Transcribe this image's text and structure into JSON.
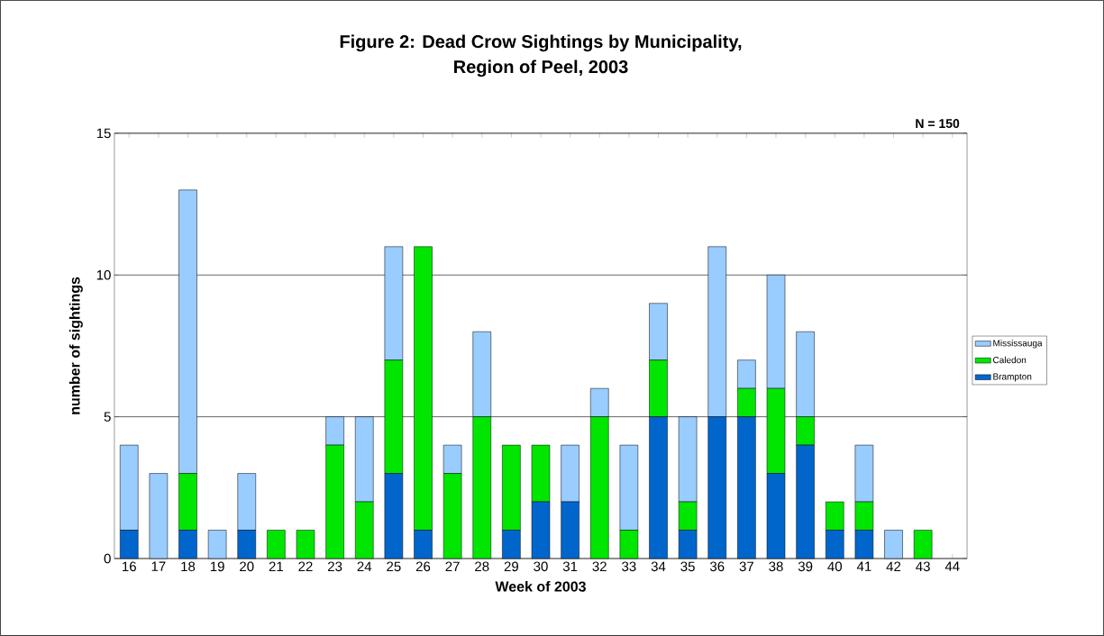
{
  "chart_data": {
    "type": "bar",
    "title": "Figure 2: Dead Crow Sightings by Municipality,\nRegion of Peel, 2003",
    "xlabel": "Week of 2003",
    "ylabel": "number of sightings",
    "annotations": [
      "N = 150"
    ],
    "categories": [
      "16",
      "17",
      "18",
      "19",
      "20",
      "21",
      "22",
      "23",
      "24",
      "25",
      "26",
      "27",
      "28",
      "29",
      "30",
      "31",
      "32",
      "33",
      "34",
      "35",
      "36",
      "37",
      "38",
      "39",
      "40",
      "41",
      "42",
      "43",
      "44"
    ],
    "stacked": true,
    "ylim": [
      0,
      15
    ],
    "yticks": [
      0,
      5,
      10,
      15
    ],
    "grid": "y",
    "legend": "right",
    "series": [
      {
        "name": "Brampton",
        "color": "#0066cc",
        "values": [
          1,
          0,
          1,
          0,
          1,
          0,
          0,
          0,
          0,
          3,
          1,
          0,
          0,
          1,
          2,
          2,
          0,
          0,
          5,
          1,
          5,
          5,
          3,
          4,
          1,
          1,
          0,
          0,
          0
        ]
      },
      {
        "name": "Caledon",
        "color": "#00e600",
        "values": [
          0,
          0,
          2,
          0,
          0,
          1,
          1,
          4,
          2,
          4,
          10,
          3,
          5,
          3,
          2,
          0,
          5,
          1,
          2,
          1,
          0,
          1,
          3,
          1,
          1,
          1,
          0,
          1,
          0
        ]
      },
      {
        "name": "Mississauga",
        "color": "#99ccff",
        "values": [
          3,
          3,
          10,
          1,
          2,
          0,
          0,
          1,
          3,
          4,
          0,
          1,
          3,
          0,
          0,
          2,
          1,
          3,
          2,
          3,
          6,
          1,
          4,
          3,
          0,
          2,
          1,
          0,
          0
        ]
      }
    ]
  }
}
